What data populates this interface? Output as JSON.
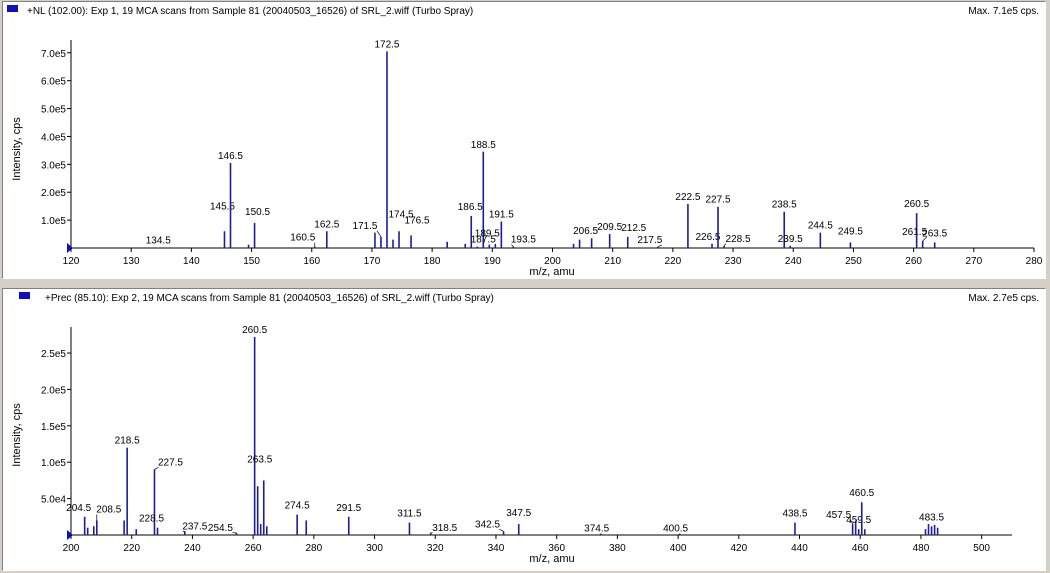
{
  "colors": {
    "line": "#1c1c9e",
    "header_icon": "#1010c0"
  },
  "panels": [
    {
      "header": "+NL (102.00): Exp 1, 19 MCA scans from Sample 81 (20040503_16526) of SRL_2.wiff (Turbo Spray)",
      "max": "Max. 7.1e5 cps."
    },
    {
      "header": "+Prec (85.10): Exp 2, 19 MCA scans from Sample 81 (20040503_16526) of SRL_2.wiff (Turbo Spray)",
      "max": "Max. 2.7e5 cps."
    }
  ],
  "chart_data": [
    {
      "type": "bar",
      "title": "+NL (102.00): Exp 1, 19 MCA scans from Sample 81 (20040503_16526) of SRL_2.wiff (Turbo Spray)",
      "xlabel": "m/z, amu",
      "ylabel": "Intensity, cps",
      "xlim": [
        120,
        280
      ],
      "ylim": [
        0,
        710000
      ],
      "xticks": [
        120,
        130,
        140,
        150,
        160,
        170,
        180,
        190,
        200,
        210,
        220,
        230,
        240,
        250,
        260,
        270,
        280
      ],
      "yticks": [
        {
          "v": 100000,
          "label": "1.0e5"
        },
        {
          "v": 200000,
          "label": "2.0e5"
        },
        {
          "v": 300000,
          "label": "3.0e5"
        },
        {
          "v": 400000,
          "label": "4.0e5"
        },
        {
          "v": 500000,
          "label": "5.0e5"
        },
        {
          "v": 600000,
          "label": "6.0e5"
        },
        {
          "v": 700000,
          "label": "7.0e5"
        }
      ],
      "peaks": [
        {
          "x": 134.5,
          "y": 1500,
          "label": "134.5"
        },
        {
          "x": 145.5,
          "y": 60000,
          "label": "145.5"
        },
        {
          "x": 146.5,
          "y": 305000,
          "label": "146.5"
        },
        {
          "x": 149.5,
          "y": 12000
        },
        {
          "x": 150.5,
          "y": 90000,
          "label": "150.5"
        },
        {
          "x": 160.5,
          "y": 5000,
          "label": "160.5"
        },
        {
          "x": 162.5,
          "y": 60000,
          "label": "162.5"
        },
        {
          "x": 170.5,
          "y": 55000
        },
        {
          "x": 171.5,
          "y": 40000,
          "label": "171.5"
        },
        {
          "x": 172.5,
          "y": 705000,
          "label": "172.5"
        },
        {
          "x": 173.5,
          "y": 30000
        },
        {
          "x": 174.5,
          "y": 60000,
          "label": "174.5"
        },
        {
          "x": 176.5,
          "y": 45000,
          "label": "176.5"
        },
        {
          "x": 182.5,
          "y": 22000
        },
        {
          "x": 185.5,
          "y": 15000
        },
        {
          "x": 186.5,
          "y": 115000,
          "label": "186.5"
        },
        {
          "x": 187.5,
          "y": 5000,
          "label": "187.5"
        },
        {
          "x": 188.5,
          "y": 345000,
          "label": "188.5"
        },
        {
          "x": 189.5,
          "y": 12000,
          "label": "189.5"
        },
        {
          "x": 190.5,
          "y": 15000
        },
        {
          "x": 191.5,
          "y": 95000,
          "label": "191.5"
        },
        {
          "x": 193.5,
          "y": 5000,
          "label": "193.5"
        },
        {
          "x": 203.5,
          "y": 15000
        },
        {
          "x": 204.5,
          "y": 30000
        },
        {
          "x": 206.5,
          "y": 35000,
          "label": "206.5"
        },
        {
          "x": 209.5,
          "y": 50000,
          "label": "209.5"
        },
        {
          "x": 212.5,
          "y": 40000,
          "label": "212.5"
        },
        {
          "x": 217.5,
          "y": 4000,
          "label": "217.5"
        },
        {
          "x": 222.5,
          "y": 158000,
          "label": "222.5"
        },
        {
          "x": 226.5,
          "y": 15000,
          "label": "226.5"
        },
        {
          "x": 227.5,
          "y": 148000,
          "label": "227.5"
        },
        {
          "x": 228.5,
          "y": 8000,
          "label": "228.5"
        },
        {
          "x": 238.5,
          "y": 130000,
          "label": "238.5"
        },
        {
          "x": 239.5,
          "y": 8000,
          "label": "239.5"
        },
        {
          "x": 244.5,
          "y": 55000,
          "label": "244.5"
        },
        {
          "x": 249.5,
          "y": 20000,
          "label": "249.5"
        },
        {
          "x": 260.5,
          "y": 125000,
          "label": "260.5"
        },
        {
          "x": 261.5,
          "y": 25000,
          "label": "261.5"
        },
        {
          "x": 263.5,
          "y": 20000,
          "label": "263.5"
        }
      ]
    },
    {
      "type": "bar",
      "title": "+Prec (85.10): Exp 2, 19 MCA scans from Sample 81 (20040503_16526) of SRL_2.wiff (Turbo Spray)",
      "xlabel": "m/z, amu",
      "ylabel": "Intensity, cps",
      "xlim": [
        200,
        510
      ],
      "ylim": [
        0,
        272000
      ],
      "xticks": [
        200,
        220,
        240,
        260,
        280,
        300,
        320,
        340,
        360,
        380,
        400,
        420,
        440,
        460,
        480,
        500
      ],
      "yticks": [
        {
          "v": 50000,
          "label": "5.0e4"
        },
        {
          "v": 100000,
          "label": "1.0e5"
        },
        {
          "v": 150000,
          "label": "1.5e5"
        },
        {
          "v": 200000,
          "label": "2.0e5"
        },
        {
          "v": 250000,
          "label": "2.5e5"
        }
      ],
      "peaks": [
        {
          "x": 204.5,
          "y": 25000,
          "label": "204.5"
        },
        {
          "x": 205.5,
          "y": 10000
        },
        {
          "x": 207.5,
          "y": 12000
        },
        {
          "x": 208.5,
          "y": 20000,
          "label": "208.5"
        },
        {
          "x": 217.5,
          "y": 20000
        },
        {
          "x": 218.5,
          "y": 120000,
          "label": "218.5"
        },
        {
          "x": 221.5,
          "y": 8000
        },
        {
          "x": 227.5,
          "y": 90000,
          "label": "227.5"
        },
        {
          "x": 228.5,
          "y": 10000,
          "label": "228.5"
        },
        {
          "x": 237.5,
          "y": 5000,
          "label": "237.5"
        },
        {
          "x": 254.5,
          "y": 3000,
          "label": "254.5"
        },
        {
          "x": 260.5,
          "y": 272000,
          "label": "260.5"
        },
        {
          "x": 261.5,
          "y": 67000
        },
        {
          "x": 262.5,
          "y": 15000
        },
        {
          "x": 263.5,
          "y": 75000,
          "label": "263.5"
        },
        {
          "x": 264.5,
          "y": 12000
        },
        {
          "x": 274.5,
          "y": 28000,
          "label": "274.5"
        },
        {
          "x": 277.5,
          "y": 20000
        },
        {
          "x": 291.5,
          "y": 25000,
          "label": "291.5"
        },
        {
          "x": 311.5,
          "y": 17000,
          "label": "311.5"
        },
        {
          "x": 318.5,
          "y": 3000,
          "label": "318.5"
        },
        {
          "x": 342.5,
          "y": 5000,
          "label": "342.5"
        },
        {
          "x": 347.5,
          "y": 15000,
          "label": "347.5"
        },
        {
          "x": 374.5,
          "y": 2000,
          "label": "374.5"
        },
        {
          "x": 400.5,
          "y": 2000,
          "label": "400.5"
        },
        {
          "x": 438.5,
          "y": 17000,
          "label": "438.5"
        },
        {
          "x": 457.5,
          "y": 15000,
          "label": "457.5"
        },
        {
          "x": 458.5,
          "y": 20000
        },
        {
          "x": 459.5,
          "y": 8000,
          "label": "459.5"
        },
        {
          "x": 460.5,
          "y": 45000,
          "label": "460.5"
        },
        {
          "x": 461.5,
          "y": 8000
        },
        {
          "x": 481.5,
          "y": 8000
        },
        {
          "x": 482.5,
          "y": 15000
        },
        {
          "x": 483.5,
          "y": 12000,
          "label": "483.5"
        },
        {
          "x": 484.5,
          "y": 14000
        },
        {
          "x": 485.5,
          "y": 10000
        }
      ]
    }
  ]
}
